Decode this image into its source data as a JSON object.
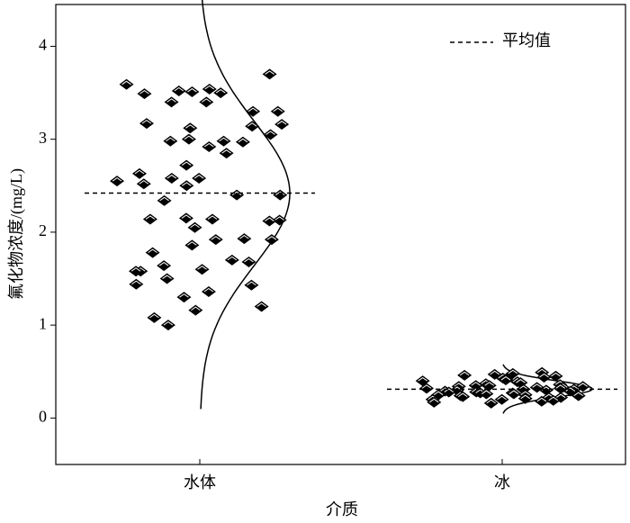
{
  "chart_data": {
    "type": "strip",
    "categories": [
      "水体",
      "冰"
    ],
    "values": [
      [
        3.7,
        3.59,
        3.54,
        3.52,
        3.51,
        3.5,
        3.49,
        3.4,
        3.4,
        3.3,
        3.3,
        3.17,
        3.16,
        3.14,
        3.12,
        3.05,
        3.0,
        2.98,
        2.98,
        2.97,
        2.92,
        2.85,
        2.72,
        2.63,
        2.58,
        2.58,
        2.55,
        2.52,
        2.5,
        2.4,
        2.4,
        2.34,
        2.15,
        2.14,
        2.14,
        2.13,
        2.12,
        2.05,
        1.93,
        1.92,
        1.92,
        1.86,
        1.78,
        1.7,
        1.68,
        1.64,
        1.6,
        1.58,
        1.58,
        1.5,
        1.44,
        1.43,
        1.36,
        1.3,
        1.2,
        1.16,
        1.08,
        1.0
      ],
      [
        0.49,
        0.48,
        0.47,
        0.46,
        0.45,
        0.44,
        0.43,
        0.42,
        0.41,
        0.4,
        0.39,
        0.38,
        0.37,
        0.36,
        0.35,
        0.35,
        0.34,
        0.34,
        0.33,
        0.33,
        0.32,
        0.32,
        0.31,
        0.31,
        0.3,
        0.3,
        0.29,
        0.29,
        0.28,
        0.28,
        0.27,
        0.27,
        0.26,
        0.26,
        0.25,
        0.25,
        0.24,
        0.24,
        0.23,
        0.22,
        0.22,
        0.21,
        0.2,
        0.2,
        0.19,
        0.18,
        0.17,
        0.16
      ]
    ],
    "means": [
      2.42,
      0.31
    ],
    "legend": "平均值",
    "xlabel": "介质",
    "ylabel": "氟化物浓度/(mg/L)",
    "ylim": [
      -0.5,
      4.45
    ],
    "yticks": [
      0,
      1,
      2,
      3,
      4
    ],
    "color": "#000000"
  }
}
